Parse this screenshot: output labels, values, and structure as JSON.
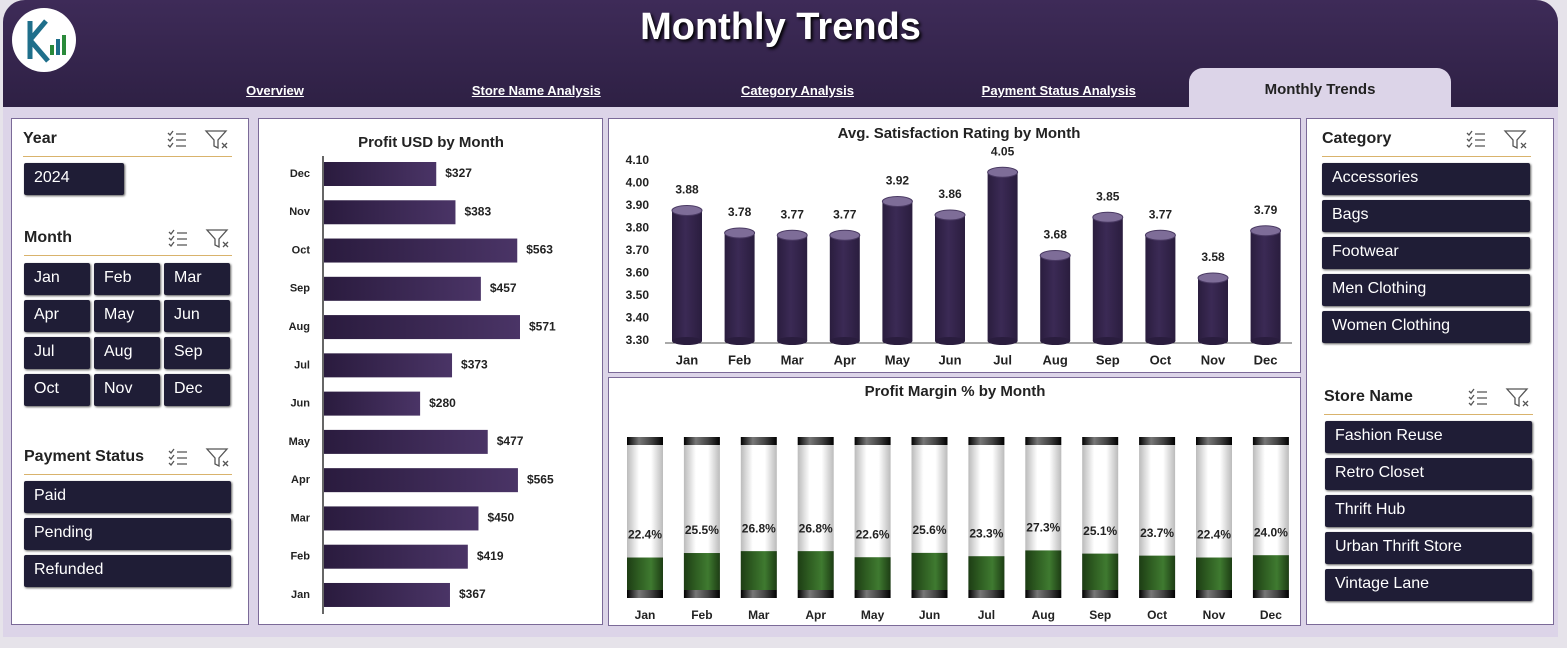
{
  "header": {
    "title": "Monthly Trends"
  },
  "tabs": [
    "Overview",
    "Store Name Analysis",
    "Category Analysis",
    "Payment Status Analysis",
    "Monthly Trends"
  ],
  "slicers": [
    {
      "title": "Year",
      "items": [
        "2024"
      ]
    },
    {
      "title": "Month",
      "items": [
        "Jan",
        "Feb",
        "Mar",
        "Apr",
        "May",
        "Jun",
        "Jul",
        "Aug",
        "Sep",
        "Oct",
        "Nov",
        "Dec"
      ]
    },
    {
      "title": "Payment Status",
      "items": [
        "Paid",
        "Pending",
        "Refunded"
      ]
    },
    {
      "title": "Category",
      "items": [
        "Accessories",
        "Bags",
        "Footwear",
        "Men Clothing",
        "Women Clothing"
      ]
    },
    {
      "title": "Store Name",
      "items": [
        "Fashion Reuse",
        "Retro Closet",
        "Thrift Hub",
        "Urban Thrift Store",
        "Vintage Lane"
      ]
    }
  ],
  "chart_data": [
    {
      "type": "hbar",
      "title": "Profit USD by Month",
      "categories": [
        "Jan",
        "Feb",
        "Mar",
        "Apr",
        "May",
        "Jun",
        "Jul",
        "Aug",
        "Sep",
        "Oct",
        "Nov",
        "Dec"
      ],
      "values": [
        367,
        419,
        450,
        565,
        477,
        280,
        373,
        571,
        457,
        563,
        383,
        327
      ],
      "value_labels": [
        "$367",
        "$419",
        "$450",
        "$565",
        "$477",
        "$280",
        "$373",
        "$571",
        "$457",
        "$563",
        "$383",
        "$327"
      ],
      "color": "#4a3466"
    },
    {
      "type": "cylinder",
      "title": "Avg. Satisfaction Rating by Month",
      "categories": [
        "Jan",
        "Feb",
        "Mar",
        "Apr",
        "May",
        "Jun",
        "Jul",
        "Aug",
        "Sep",
        "Oct",
        "Nov",
        "Dec"
      ],
      "values": [
        3.88,
        3.78,
        3.77,
        3.77,
        3.92,
        3.86,
        4.05,
        3.68,
        3.85,
        3.77,
        3.58,
        3.79
      ],
      "ylim": [
        3.3,
        4.1
      ],
      "yticks": [
        {
          "value": 3.3,
          "label": "3.30"
        },
        {
          "value": 3.4,
          "label": "3.40"
        },
        {
          "value": 3.5,
          "label": "3.50"
        },
        {
          "value": 3.6,
          "label": "3.60"
        },
        {
          "value": 3.7,
          "label": "3.70"
        },
        {
          "value": 3.8,
          "label": "3.80"
        },
        {
          "value": 3.9,
          "label": "3.90"
        },
        {
          "value": 4.0,
          "label": "4.00"
        },
        {
          "value": 4.1,
          "label": "4.10"
        }
      ],
      "color": "#3b2a55"
    },
    {
      "type": "tube",
      "title": "Profit Margin % by Month",
      "categories": [
        "Jan",
        "Feb",
        "Mar",
        "Apr",
        "May",
        "Jun",
        "Jul",
        "Aug",
        "Sep",
        "Oct",
        "Nov",
        "Dec"
      ],
      "values": [
        22.4,
        25.5,
        26.8,
        26.8,
        22.6,
        25.6,
        23.3,
        27.3,
        25.1,
        23.7,
        22.4,
        24.0
      ],
      "value_labels": [
        "22.4%",
        "25.5%",
        "26.8%",
        "26.8%",
        "22.6%",
        "25.6%",
        "23.3%",
        "27.3%",
        "25.1%",
        "23.7%",
        "22.4%",
        "24.0%"
      ],
      "ylim": [
        0,
        100
      ],
      "color": "#2f5e22"
    }
  ]
}
